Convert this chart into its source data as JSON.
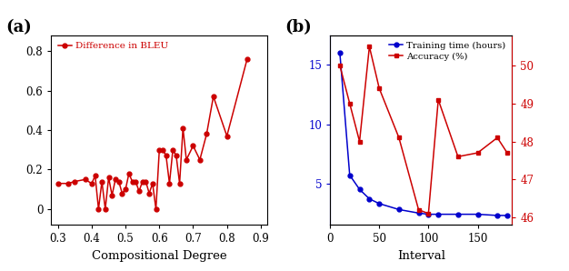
{
  "panel_a": {
    "x": [
      0.3,
      0.33,
      0.35,
      0.38,
      0.4,
      0.41,
      0.42,
      0.43,
      0.44,
      0.45,
      0.46,
      0.47,
      0.48,
      0.49,
      0.5,
      0.51,
      0.52,
      0.53,
      0.54,
      0.55,
      0.56,
      0.57,
      0.58,
      0.59,
      0.6,
      0.61,
      0.62,
      0.63,
      0.64,
      0.65,
      0.66,
      0.67,
      0.68,
      0.7,
      0.72,
      0.74,
      0.76,
      0.8,
      0.86
    ],
    "y": [
      0.13,
      0.13,
      0.14,
      0.15,
      0.13,
      0.17,
      0.0,
      0.14,
      0.0,
      0.16,
      0.07,
      0.15,
      0.14,
      0.08,
      0.1,
      0.18,
      0.14,
      0.14,
      0.09,
      0.14,
      0.14,
      0.08,
      0.13,
      0.0,
      0.3,
      0.3,
      0.27,
      0.13,
      0.3,
      0.27,
      0.13,
      0.41,
      0.25,
      0.32,
      0.25,
      0.38,
      0.57,
      0.37,
      0.76
    ],
    "color": "#cc0000",
    "label": "Difference in BLEU",
    "xlabel": "Compositional Degree",
    "xlim": [
      0.28,
      0.92
    ],
    "ylim": [
      -0.08,
      0.88
    ],
    "xticks": [
      0.3,
      0.4,
      0.5,
      0.6,
      0.7,
      0.8,
      0.9
    ],
    "yticks": [
      0.0,
      0.2,
      0.4,
      0.6,
      0.8
    ],
    "ytick_labels": [
      "0",
      "0.2",
      "0.4",
      "0.6",
      "0.8"
    ]
  },
  "panel_b": {
    "time_x": [
      10,
      20,
      30,
      40,
      50,
      70,
      90,
      100,
      110,
      130,
      150,
      170,
      180
    ],
    "time_y": [
      16.0,
      5.7,
      4.5,
      3.7,
      3.3,
      2.8,
      2.5,
      2.4,
      2.4,
      2.4,
      2.4,
      2.3,
      2.3
    ],
    "acc_x": [
      10,
      20,
      30,
      40,
      50,
      70,
      90,
      100,
      110,
      130,
      150,
      170,
      180
    ],
    "acc_y": [
      50.0,
      49.0,
      48.0,
      50.5,
      49.4,
      48.1,
      46.2,
      46.1,
      49.1,
      47.6,
      47.7,
      48.1,
      47.7
    ],
    "time_color": "#0000cc",
    "acc_color": "#cc0000",
    "time_label": "Training time (hours)",
    "acc_label": "Accuracy (%)",
    "xlabel": "Interval",
    "xlim": [
      0,
      185
    ],
    "ylim_left": [
      1.5,
      17.5
    ],
    "ylim_right": [
      45.8,
      50.8
    ],
    "yticks_left": [
      5,
      10,
      15
    ],
    "ytick_labels_left": [
      "5",
      "10",
      "15"
    ],
    "yticks_right": [
      46,
      47,
      48,
      49,
      50
    ],
    "ytick_labels_right": [
      "46",
      "47",
      "48",
      "49",
      "50"
    ],
    "xticks": [
      0,
      50,
      100,
      150
    ],
    "xtick_labels": [
      "0",
      "50",
      "100",
      "150"
    ]
  },
  "label_a": "(a)",
  "label_b": "(b)",
  "label_fontsize": 13
}
